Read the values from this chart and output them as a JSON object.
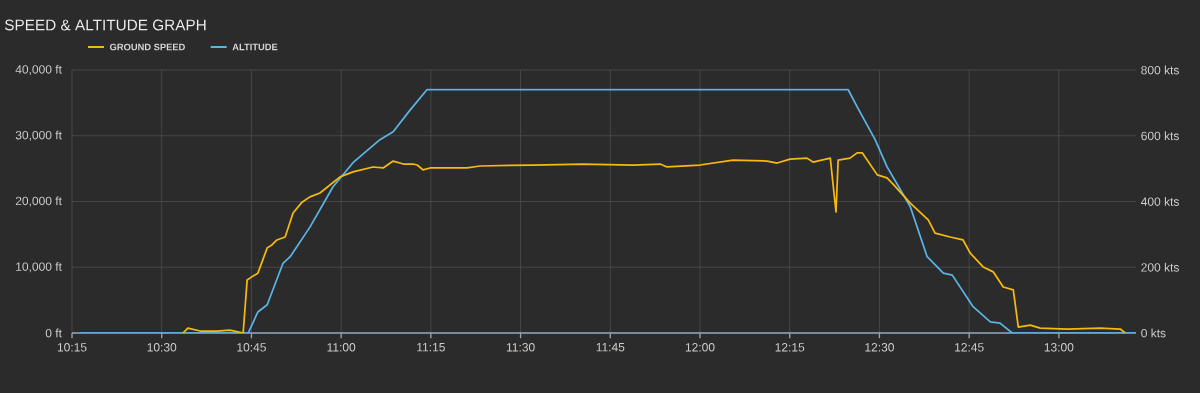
{
  "chart_data": {
    "type": "line",
    "title": "SPEED & ALTITUDE GRAPH",
    "legend": "top left",
    "grid": true,
    "xlim": [
      10.25,
      13.215
    ],
    "ylim": [
      0,
      40000
    ],
    "y2lim": [
      0,
      800
    ],
    "xticks": [
      {
        "value": 10.25,
        "label": "10:15"
      },
      {
        "value": 10.5,
        "label": "10:30"
      },
      {
        "value": 10.75,
        "label": "10:45"
      },
      {
        "value": 11,
        "label": "11:00"
      },
      {
        "value": 11.25,
        "label": "11:15"
      },
      {
        "value": 11.5,
        "label": "11:30"
      },
      {
        "value": 11.75,
        "label": "11:45"
      },
      {
        "value": 12,
        "label": "12:00"
      },
      {
        "value": 12.25,
        "label": "12:15"
      },
      {
        "value": 12.5,
        "label": "12:30"
      },
      {
        "value": 12.75,
        "label": "12:45"
      },
      {
        "value": 13,
        "label": "13:00"
      }
    ],
    "yticks": [
      {
        "value": 0,
        "label": "0 ft"
      },
      {
        "value": 10000,
        "label": "10,000 ft"
      },
      {
        "value": 20000,
        "label": "20,000 ft"
      },
      {
        "value": 30000,
        "label": "30,000 ft"
      },
      {
        "value": 40000,
        "label": "40,000 ft"
      }
    ],
    "y2ticks": [
      {
        "value": 0,
        "label": "0 kts"
      },
      {
        "value": 200,
        "label": "200 kts"
      },
      {
        "value": 400,
        "label": "400 kts"
      },
      {
        "value": 600,
        "label": "600 kts"
      },
      {
        "value": 800,
        "label": "800 kts"
      }
    ],
    "series": [
      {
        "name": "GROUND SPEED",
        "color": "#f5b90f",
        "axis": "y2",
        "x": [
          10.559,
          10.573,
          10.607,
          10.654,
          10.69,
          10.727,
          10.738,
          10.754,
          10.768,
          10.794,
          10.807,
          10.821,
          10.844,
          10.866,
          10.891,
          10.913,
          10.941,
          10.997,
          11.033,
          11.089,
          11.117,
          11.145,
          11.173,
          11.2,
          11.212,
          11.228,
          11.248,
          11.351,
          11.387,
          11.535,
          11.674,
          11.814,
          11.889,
          11.908,
          12.0,
          12.092,
          12.187,
          12.215,
          12.251,
          12.298,
          12.315,
          12.363,
          12.379,
          12.385,
          12.418,
          12.438,
          12.452,
          12.494,
          12.521,
          12.538,
          12.586,
          12.636,
          12.655,
          12.697,
          12.733,
          12.753,
          12.789,
          12.817,
          12.845,
          12.873,
          12.887,
          12.92,
          12.948,
          13.023,
          13.115,
          13.171,
          13.185
        ],
        "values": [
          0,
          15,
          6,
          6,
          9,
          0,
          161,
          173,
          182,
          259,
          268,
          283,
          292,
          365,
          398,
          414,
          426,
          475,
          490,
          505,
          502,
          523,
          514,
          514,
          511,
          496,
          502,
          502,
          508,
          511,
          514,
          511,
          514,
          505,
          511,
          526,
          523,
          517,
          529,
          532,
          520,
          532,
          368,
          526,
          532,
          548,
          548,
          481,
          472,
          453,
          395,
          344,
          304,
          292,
          283,
          243,
          201,
          186,
          140,
          131,
          18,
          24,
          15,
          12,
          15,
          12,
          0
        ]
      },
      {
        "name": "ALTITUDE",
        "color": "#5ab4e6",
        "x": [
          10.272,
          10.741,
          10.768,
          10.794,
          10.838,
          10.858,
          10.913,
          10.977,
          11.033,
          11.108,
          11.145,
          11.192,
          11.239,
          12.413,
          12.438,
          12.488,
          12.521,
          12.586,
          12.633,
          12.678,
          12.703,
          12.761,
          12.809,
          12.836,
          12.87,
          13.215
        ],
        "values": [
          0,
          0,
          3200,
          4300,
          10600,
          11600,
          16100,
          22200,
          25900,
          29400,
          30600,
          33900,
          37000,
          37000,
          34400,
          29400,
          25300,
          19200,
          11600,
          9100,
          8800,
          4000,
          1700,
          1500,
          0,
          0
        ]
      }
    ]
  }
}
